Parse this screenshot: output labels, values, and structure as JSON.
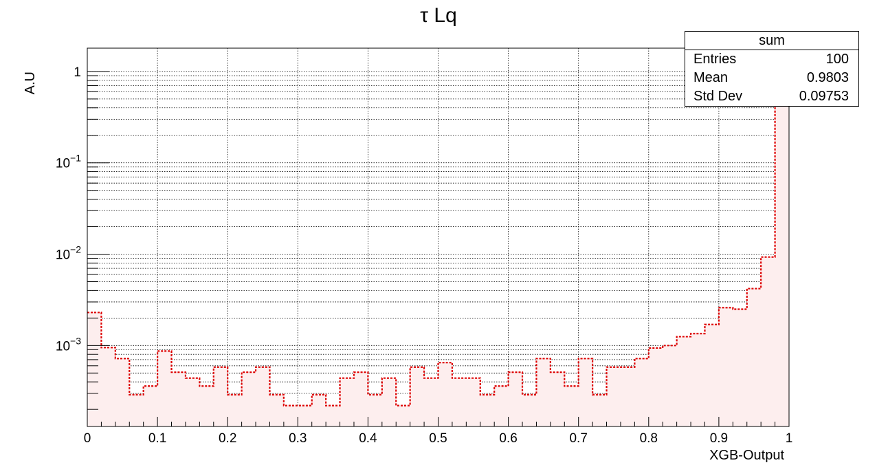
{
  "chart_data": {
    "type": "histogram",
    "title": "τ Lq",
    "xlabel": "XGB-Output",
    "ylabel": "A.U",
    "xlim": [
      0,
      1
    ],
    "ylim": [
      0.00013,
      1.8
    ],
    "yscale": "log",
    "grid": true,
    "x_ticks": [
      {
        "value": 0,
        "label": "0"
      },
      {
        "value": 0.1,
        "label": "0.1"
      },
      {
        "value": 0.2,
        "label": "0.2"
      },
      {
        "value": 0.3,
        "label": "0.3"
      },
      {
        "value": 0.4,
        "label": "0.4"
      },
      {
        "value": 0.5,
        "label": "0.5"
      },
      {
        "value": 0.6,
        "label": "0.6"
      },
      {
        "value": 0.7,
        "label": "0.7"
      },
      {
        "value": 0.8,
        "label": "0.8"
      },
      {
        "value": 0.9,
        "label": "0.9"
      },
      {
        "value": 1,
        "label": "1"
      }
    ],
    "y_ticks": [
      {
        "value": 1,
        "base": "1",
        "exp": ""
      },
      {
        "value": 0.1,
        "base": "10",
        "exp": "−1"
      },
      {
        "value": 0.01,
        "base": "10",
        "exp": "−2"
      },
      {
        "value": 0.001,
        "base": "10",
        "exp": "−3"
      }
    ],
    "bin_width": 0.02,
    "bin_edges_start": 0,
    "values": [
      0.0023,
      0.00095,
      0.00072,
      0.00029,
      0.00036,
      0.00087,
      0.00051,
      0.00044,
      0.00036,
      0.00058,
      0.00029,
      0.00051,
      0.00058,
      0.00029,
      0.00022,
      0.00022,
      0.00029,
      0.00022,
      0.00044,
      0.00051,
      0.00029,
      0.00044,
      0.00022,
      0.00058,
      0.00044,
      0.00065,
      0.00044,
      0.00044,
      0.00029,
      0.00036,
      0.00051,
      0.00029,
      0.00072,
      0.00051,
      0.00036,
      0.00072,
      0.00029,
      0.00058,
      0.00058,
      0.00072,
      0.00094,
      0.001,
      0.00125,
      0.00135,
      0.0017,
      0.0026,
      0.0025,
      0.0042,
      0.0093,
      0.95
    ],
    "line_color": "#dd0000",
    "fill_color": "#fdeeee",
    "stats": {
      "name": "sum",
      "rows": [
        {
          "key": "Entries",
          "value": "100"
        },
        {
          "key": "Mean",
          "value": "0.9803"
        },
        {
          "key": "Std Dev",
          "value": "0.09753"
        }
      ]
    }
  }
}
